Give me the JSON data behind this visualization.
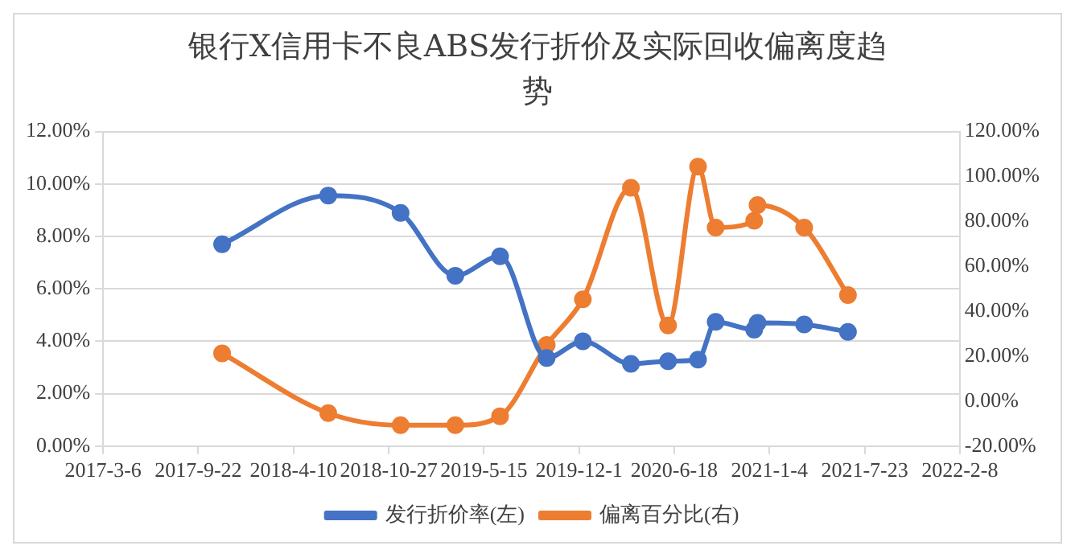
{
  "chart_data": {
    "type": "line",
    "title": "银行X信用卡不良ABS发行折价及实际回收偏离度趋势",
    "x": [
      "2017-11-11",
      "2018-06-22",
      "2018-11-21",
      "2019-03-16",
      "2019-06-18",
      "2019-09-24",
      "2019-12-09",
      "2020-03-19",
      "2020-06-05",
      "2020-08-07",
      "2020-09-13",
      "2020-12-03",
      "2020-12-10",
      "2021-03-18",
      "2021-06-18"
    ],
    "series": [
      {
        "name": "发行折价率(左)",
        "color": "#4472c4",
        "values": [
          7.7,
          9.56,
          8.9,
          6.5,
          7.24,
          3.36,
          4.0,
          3.14,
          3.24,
          3.3,
          4.74,
          4.44,
          4.7,
          4.64,
          4.36
        ]
      },
      {
        "name": "偏离百分比(右)",
        "color": "#ed7d31",
        "axis": "y2",
        "values": [
          21.3,
          -5.3,
          -10.7,
          -10.7,
          -6.7,
          25.0,
          45.3,
          95.0,
          33.7,
          104.4,
          77.3,
          80.3,
          87.3,
          77.3,
          47.2
        ]
      }
    ],
    "xlim": [
      "2017-03-06",
      "2022-02-08"
    ],
    "xticks": [
      {
        "value": "2017-03-06",
        "label": "2017-3-6"
      },
      {
        "value": "2017-09-22",
        "label": "2017-9-22"
      },
      {
        "value": "2018-04-10",
        "label": "2018-4-10"
      },
      {
        "value": "2018-10-27",
        "label": "2018-10-27"
      },
      {
        "value": "2019-05-15",
        "label": "2019-5-15"
      },
      {
        "value": "2019-12-01",
        "label": "2019-12-1"
      },
      {
        "value": "2020-06-18",
        "label": "2020-6-18"
      },
      {
        "value": "2021-01-04",
        "label": "2021-1-4"
      },
      {
        "value": "2021-07-23",
        "label": "2021-7-23"
      },
      {
        "value": "2022-02-08",
        "label": "2022-2-8"
      }
    ],
    "ylim": [
      0,
      12
    ],
    "yticks": [
      {
        "value": 0,
        "label": "0.00%"
      },
      {
        "value": 2,
        "label": "2.00%"
      },
      {
        "value": 4,
        "label": "4.00%"
      },
      {
        "value": 6,
        "label": "6.00%"
      },
      {
        "value": 8,
        "label": "8.00%"
      },
      {
        "value": 10,
        "label": "10.00%"
      },
      {
        "value": 12,
        "label": "12.00%"
      }
    ],
    "y2lim": [
      -20,
      120
    ],
    "y2ticks": [
      {
        "value": -20,
        "label": "-20.00%"
      },
      {
        "value": 0,
        "label": "0.00%"
      },
      {
        "value": 20,
        "label": "20.00%"
      },
      {
        "value": 40,
        "label": "40.00%"
      },
      {
        "value": 60,
        "label": "60.00%"
      },
      {
        "value": 80,
        "label": "80.00%"
      },
      {
        "value": 100,
        "label": "100.00%"
      },
      {
        "value": 120,
        "label": "120.00%"
      }
    ],
    "grid": "y",
    "legend": "bottom",
    "marker": "circle",
    "line_style": "solid"
  }
}
